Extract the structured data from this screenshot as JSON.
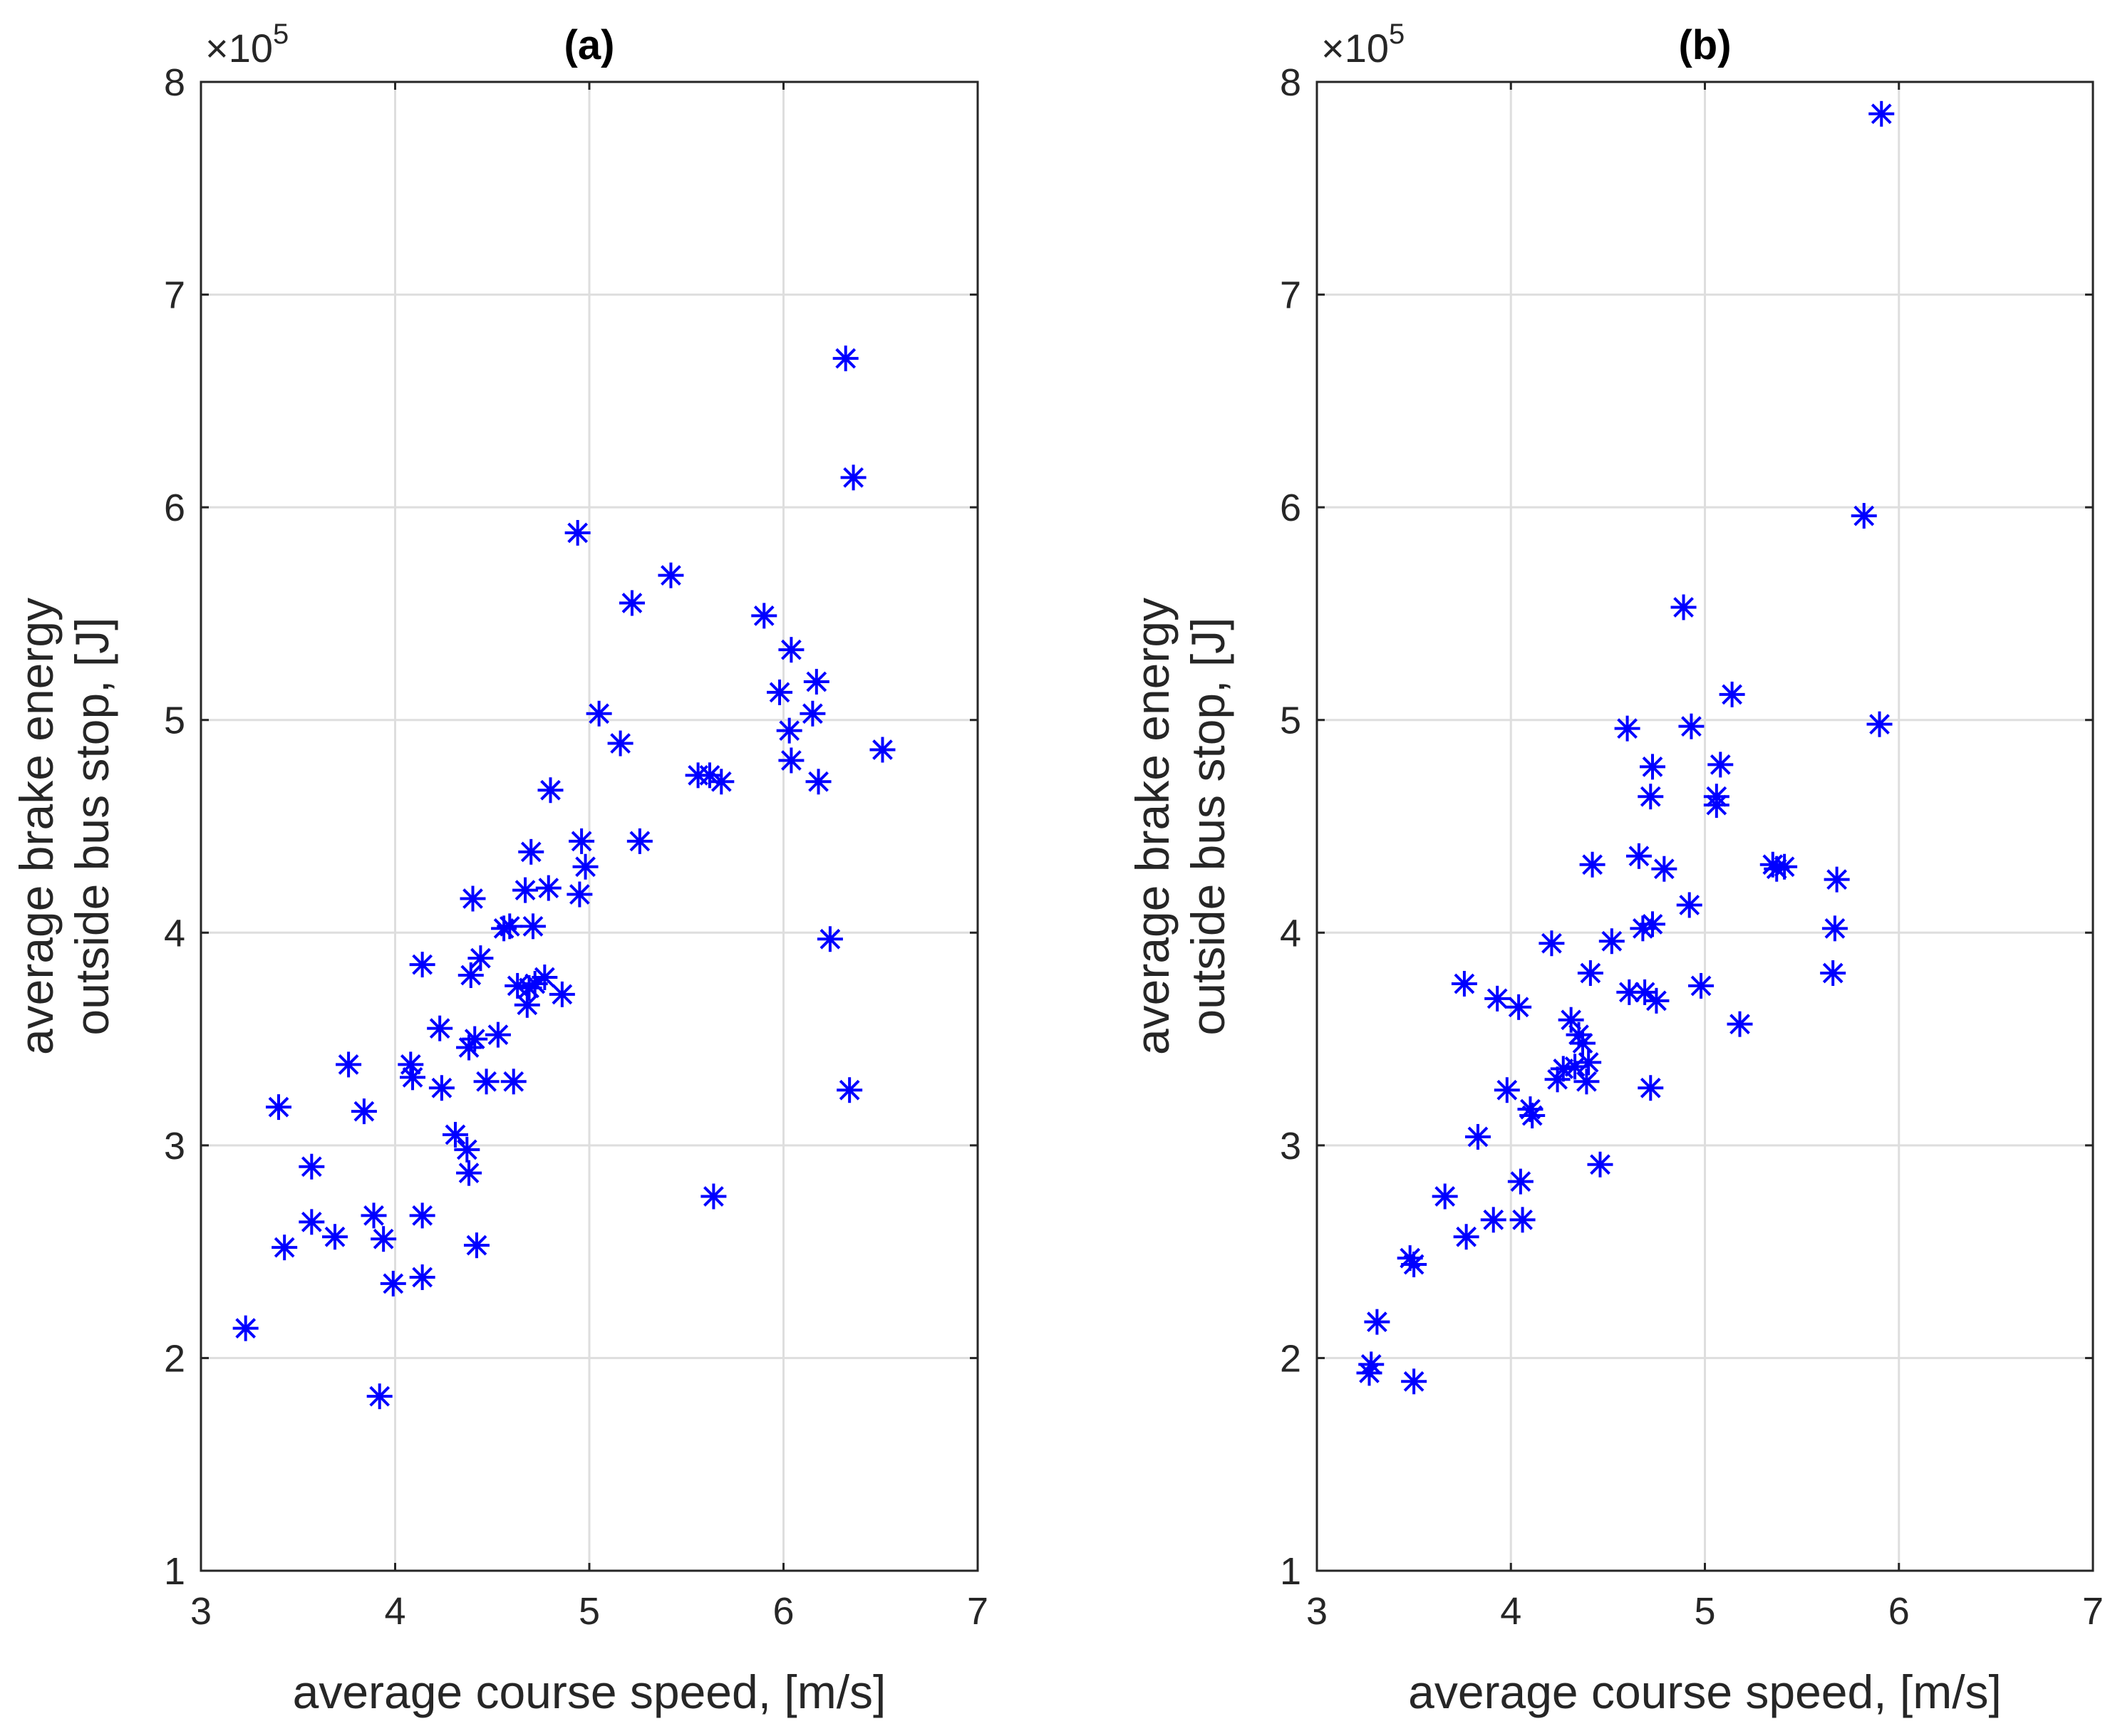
{
  "chart_data": [
    {
      "type": "scatter",
      "title": "(a)",
      "xlabel": "average course speed, [m/s]",
      "ylabel": [
        "average brake energy",
        "outside bus stop, [J]"
      ],
      "y_multiplier_label": {
        "prefix": "×10",
        "exponent": "5"
      },
      "xlim": [
        3,
        7
      ],
      "ylim": [
        1,
        8
      ],
      "xticks": [
        "3",
        "4",
        "5",
        "6",
        "7"
      ],
      "yticks": [
        "1",
        "2",
        "3",
        "4",
        "5",
        "6",
        "7",
        "8"
      ],
      "grid": true,
      "marker": "asterisk",
      "marker_color": "#0000ff",
      "points": [
        {
          "x": 3.23,
          "y": 2.14
        },
        {
          "x": 3.4,
          "y": 3.18
        },
        {
          "x": 3.43,
          "y": 2.52
        },
        {
          "x": 3.57,
          "y": 2.9
        },
        {
          "x": 3.57,
          "y": 2.64
        },
        {
          "x": 3.69,
          "y": 2.57
        },
        {
          "x": 3.76,
          "y": 3.38
        },
        {
          "x": 3.84,
          "y": 3.16
        },
        {
          "x": 3.89,
          "y": 2.67
        },
        {
          "x": 3.92,
          "y": 1.82
        },
        {
          "x": 3.94,
          "y": 2.56
        },
        {
          "x": 3.99,
          "y": 2.35
        },
        {
          "x": 4.08,
          "y": 3.38
        },
        {
          "x": 4.09,
          "y": 3.32
        },
        {
          "x": 4.14,
          "y": 2.38
        },
        {
          "x": 4.14,
          "y": 2.67
        },
        {
          "x": 4.14,
          "y": 3.85
        },
        {
          "x": 4.23,
          "y": 3.55
        },
        {
          "x": 4.24,
          "y": 3.27
        },
        {
          "x": 4.31,
          "y": 3.05
        },
        {
          "x": 4.37,
          "y": 2.98
        },
        {
          "x": 4.38,
          "y": 2.87
        },
        {
          "x": 4.38,
          "y": 3.46
        },
        {
          "x": 4.39,
          "y": 3.8
        },
        {
          "x": 4.4,
          "y": 4.16
        },
        {
          "x": 4.41,
          "y": 3.5
        },
        {
          "x": 4.42,
          "y": 2.53
        },
        {
          "x": 4.44,
          "y": 3.88
        },
        {
          "x": 4.47,
          "y": 3.3
        },
        {
          "x": 4.53,
          "y": 3.52
        },
        {
          "x": 4.56,
          "y": 4.02
        },
        {
          "x": 4.59,
          "y": 4.03
        },
        {
          "x": 4.61,
          "y": 3.3
        },
        {
          "x": 4.63,
          "y": 3.75
        },
        {
          "x": 4.67,
          "y": 4.2
        },
        {
          "x": 4.68,
          "y": 3.66
        },
        {
          "x": 4.69,
          "y": 3.74
        },
        {
          "x": 4.7,
          "y": 4.38
        },
        {
          "x": 4.71,
          "y": 4.03
        },
        {
          "x": 4.72,
          "y": 3.76
        },
        {
          "x": 4.77,
          "y": 3.79
        },
        {
          "x": 4.79,
          "y": 4.21
        },
        {
          "x": 4.8,
          "y": 4.67
        },
        {
          "x": 4.86,
          "y": 3.71
        },
        {
          "x": 4.94,
          "y": 5.88
        },
        {
          "x": 4.95,
          "y": 4.18
        },
        {
          "x": 4.96,
          "y": 4.43
        },
        {
          "x": 4.98,
          "y": 4.31
        },
        {
          "x": 5.05,
          "y": 5.03
        },
        {
          "x": 5.16,
          "y": 4.89
        },
        {
          "x": 5.22,
          "y": 5.55
        },
        {
          "x": 5.26,
          "y": 4.43
        },
        {
          "x": 5.42,
          "y": 5.68
        },
        {
          "x": 5.56,
          "y": 4.74
        },
        {
          "x": 5.62,
          "y": 4.74
        },
        {
          "x": 5.64,
          "y": 2.76
        },
        {
          "x": 5.68,
          "y": 4.71
        },
        {
          "x": 5.9,
          "y": 5.49
        },
        {
          "x": 5.98,
          "y": 5.13
        },
        {
          "x": 6.03,
          "y": 4.95
        },
        {
          "x": 6.04,
          "y": 4.81
        },
        {
          "x": 6.04,
          "y": 5.33
        },
        {
          "x": 6.15,
          "y": 5.03
        },
        {
          "x": 6.17,
          "y": 5.18
        },
        {
          "x": 6.18,
          "y": 4.71
        },
        {
          "x": 6.24,
          "y": 3.97
        },
        {
          "x": 6.32,
          "y": 6.7
        },
        {
          "x": 6.34,
          "y": 3.26
        },
        {
          "x": 6.36,
          "y": 6.14
        },
        {
          "x": 6.51,
          "y": 4.86
        }
      ]
    },
    {
      "type": "scatter",
      "title": "(b)",
      "xlabel": "average course speed, [m/s]",
      "ylabel": [
        "average brake energy",
        "outside bus stop, [J]"
      ],
      "y_multiplier_label": {
        "prefix": "×10",
        "exponent": "5"
      },
      "xlim": [
        3,
        7
      ],
      "ylim": [
        1,
        8
      ],
      "xticks": [
        "3",
        "4",
        "5",
        "6",
        "7"
      ],
      "yticks": [
        "1",
        "2",
        "3",
        "4",
        "5",
        "6",
        "7",
        "8"
      ],
      "grid": true,
      "marker": "asterisk",
      "marker_color": "#0000ff",
      "points": [
        {
          "x": 3.27,
          "y": 1.93
        },
        {
          "x": 3.28,
          "y": 1.97
        },
        {
          "x": 3.31,
          "y": 2.17
        },
        {
          "x": 3.48,
          "y": 2.47
        },
        {
          "x": 3.5,
          "y": 2.44
        },
        {
          "x": 3.5,
          "y": 1.89
        },
        {
          "x": 3.66,
          "y": 2.76
        },
        {
          "x": 3.76,
          "y": 3.76
        },
        {
          "x": 3.77,
          "y": 2.57
        },
        {
          "x": 3.83,
          "y": 3.04
        },
        {
          "x": 3.91,
          "y": 2.65
        },
        {
          "x": 3.93,
          "y": 3.69
        },
        {
          "x": 3.98,
          "y": 3.26
        },
        {
          "x": 4.04,
          "y": 3.65
        },
        {
          "x": 4.05,
          "y": 2.83
        },
        {
          "x": 4.06,
          "y": 2.65
        },
        {
          "x": 4.1,
          "y": 3.17
        },
        {
          "x": 4.11,
          "y": 3.14
        },
        {
          "x": 4.21,
          "y": 3.95
        },
        {
          "x": 4.24,
          "y": 3.31
        },
        {
          "x": 4.27,
          "y": 3.36
        },
        {
          "x": 4.31,
          "y": 3.59
        },
        {
          "x": 4.33,
          "y": 3.37
        },
        {
          "x": 4.35,
          "y": 3.52
        },
        {
          "x": 4.37,
          "y": 3.48
        },
        {
          "x": 4.39,
          "y": 3.3
        },
        {
          "x": 4.4,
          "y": 3.39
        },
        {
          "x": 4.41,
          "y": 3.81
        },
        {
          "x": 4.42,
          "y": 4.32
        },
        {
          "x": 4.46,
          "y": 2.91
        },
        {
          "x": 4.52,
          "y": 3.96
        },
        {
          "x": 4.6,
          "y": 4.96
        },
        {
          "x": 4.61,
          "y": 3.72
        },
        {
          "x": 4.66,
          "y": 4.36
        },
        {
          "x": 4.68,
          "y": 4.02
        },
        {
          "x": 4.69,
          "y": 3.72
        },
        {
          "x": 4.72,
          "y": 3.27
        },
        {
          "x": 4.72,
          "y": 4.64
        },
        {
          "x": 4.73,
          "y": 4.04
        },
        {
          "x": 4.73,
          "y": 4.78
        },
        {
          "x": 4.75,
          "y": 3.68
        },
        {
          "x": 4.79,
          "y": 4.3
        },
        {
          "x": 4.89,
          "y": 5.53
        },
        {
          "x": 4.92,
          "y": 4.13
        },
        {
          "x": 4.93,
          "y": 4.97
        },
        {
          "x": 4.98,
          "y": 3.75
        },
        {
          "x": 5.06,
          "y": 4.6
        },
        {
          "x": 5.06,
          "y": 4.64
        },
        {
          "x": 5.08,
          "y": 4.79
        },
        {
          "x": 5.14,
          "y": 5.12
        },
        {
          "x": 5.18,
          "y": 3.57
        },
        {
          "x": 5.35,
          "y": 4.32
        },
        {
          "x": 5.37,
          "y": 4.3
        },
        {
          "x": 5.41,
          "y": 4.31
        },
        {
          "x": 5.66,
          "y": 3.81
        },
        {
          "x": 5.67,
          "y": 4.02
        },
        {
          "x": 5.68,
          "y": 4.25
        },
        {
          "x": 5.82,
          "y": 5.96
        },
        {
          "x": 5.9,
          "y": 4.98
        },
        {
          "x": 5.91,
          "y": 7.85
        }
      ]
    }
  ]
}
